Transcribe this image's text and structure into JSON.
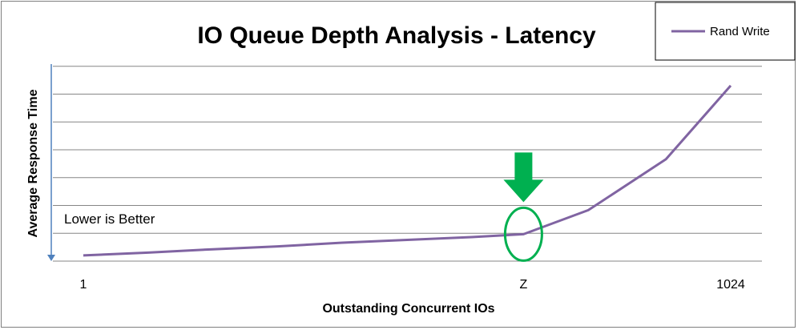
{
  "chart_data": {
    "type": "line",
    "title": "IO Queue Depth Analysis - Latency",
    "xlabel": "Outstanding Concurrent IOs",
    "ylabel": "Average Response Time",
    "x_tick_labels": [
      "1",
      "Z",
      "1024"
    ],
    "y_tick_labels": [],
    "ylim": [
      0,
      6
    ],
    "grid": true,
    "legend": {
      "placement": "top-right",
      "entries": [
        "Rand Write"
      ]
    },
    "annotation": "Lower is Better",
    "series": [
      {
        "name": "Rand Write",
        "color": "#8064a2",
        "x": [
          0,
          0.1,
          0.2,
          0.3,
          0.4,
          0.5,
          0.6,
          0.68,
          0.78,
          0.9,
          1.0
        ],
        "y": [
          0.2,
          0.3,
          0.42,
          0.52,
          0.65,
          0.75,
          0.85,
          0.95,
          1.8,
          3.6,
          6.2
        ]
      }
    ],
    "highlight": {
      "x": 0.68,
      "label": "Z",
      "marker": "green-circle-with-down-arrow",
      "color": "#00b050"
    }
  }
}
